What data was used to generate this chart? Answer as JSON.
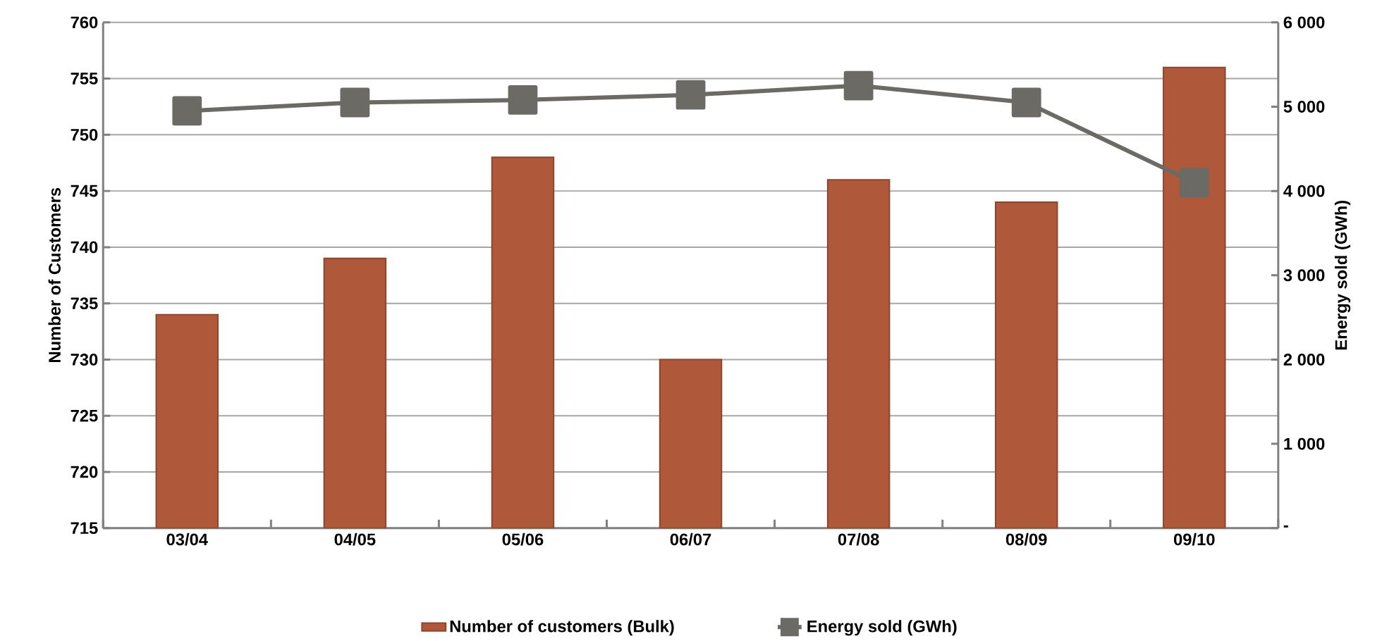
{
  "chart_data": {
    "type": "bar",
    "categories": [
      "03/04",
      "04/05",
      "05/06",
      "06/07",
      "07/08",
      "08/09",
      "09/10"
    ],
    "series": [
      {
        "name": "Number of customers (Bulk)",
        "color": "#b0583a",
        "values": [
          734,
          739,
          748,
          730,
          746,
          744,
          756
        ]
      },
      {
        "name": "Energy sold (GWh)",
        "type": "line",
        "axis": "y2",
        "marker": "square",
        "color": "#6b6a64",
        "values": [
          4950,
          5050,
          5080,
          5140,
          5250,
          5050,
          4100
        ]
      }
    ],
    "ylabel": "Number of Customers",
    "y2label": "Energy sold (GWh)",
    "ylim": [
      715,
      760
    ],
    "yticks": [
      715,
      720,
      725,
      730,
      735,
      740,
      745,
      750,
      755,
      760
    ],
    "y2lim": [
      0,
      6000
    ],
    "y2ticks": [
      {
        "value": 0,
        "label": "-"
      },
      {
        "value": 1000,
        "label": "1 000"
      },
      {
        "value": 2000,
        "label": "2 000"
      },
      {
        "value": 3000,
        "label": "3 000"
      },
      {
        "value": 4000,
        "label": "4 000"
      },
      {
        "value": 5000,
        "label": "5 000"
      },
      {
        "value": 6000,
        "label": "6 000"
      }
    ],
    "grid": "y",
    "legend": "bottom"
  }
}
